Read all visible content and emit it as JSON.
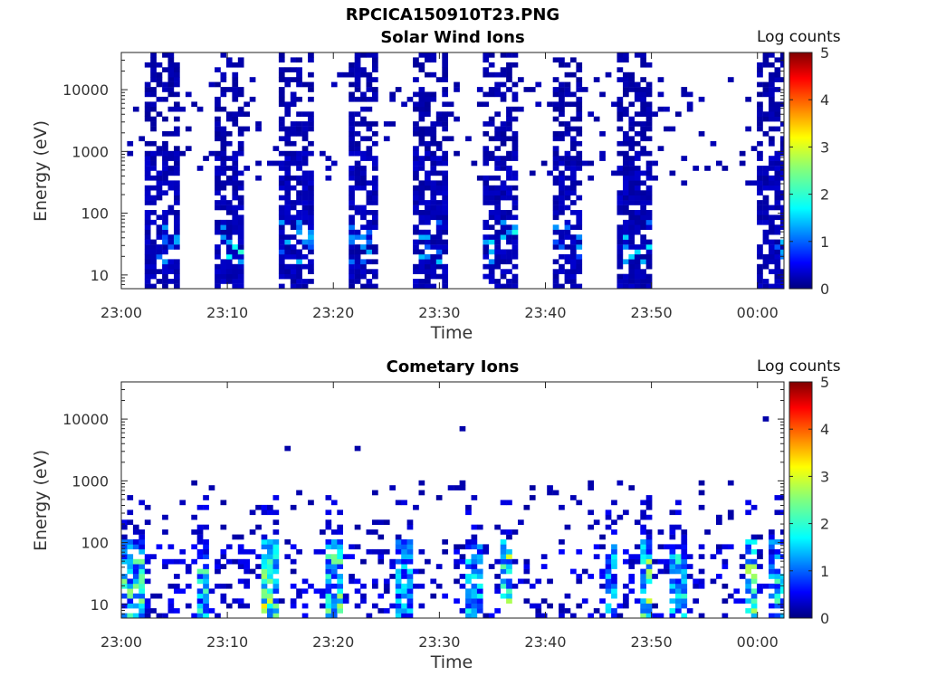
{
  "figure": {
    "title": "RPCICA150910T23.PNG"
  },
  "colorbar": {
    "label": "Log counts",
    "ticks": [
      "0",
      "1",
      "2",
      "3",
      "4",
      "5"
    ],
    "range": [
      0,
      5
    ]
  },
  "chart_data": [
    {
      "type": "heatmap",
      "title": "Solar Wind Ions",
      "xlabel": "Time",
      "ylabel": "Energy (eV)",
      "x_ticks": [
        "23:00",
        "23:10",
        "23:20",
        "23:30",
        "23:40",
        "23:50",
        "00:00"
      ],
      "y_ticks": [
        "10",
        "100",
        "1000",
        "10000"
      ],
      "y_scale": "log",
      "ylim": [
        6,
        40000
      ],
      "xlim_minutes": [
        0,
        62.5
      ],
      "colorbar_label": "Log counts",
      "zlim": [
        0,
        5
      ],
      "bursts": [
        {
          "t_start": 2.0,
          "t_end": 5.0,
          "peak_log_counts": 1.5
        },
        {
          "t_start": 8.3,
          "t_end": 11.4,
          "peak_log_counts": 2.2
        },
        {
          "t_start": 14.5,
          "t_end": 17.8,
          "peak_log_counts": 1.6
        },
        {
          "t_start": 21.0,
          "t_end": 24.2,
          "peak_log_counts": 1.5
        },
        {
          "t_start": 27.5,
          "t_end": 30.6,
          "peak_log_counts": 1.6
        },
        {
          "t_start": 34.0,
          "t_end": 37.2,
          "peak_log_counts": 2.0
        },
        {
          "t_start": 40.3,
          "t_end": 43.4,
          "peak_log_counts": 1.5
        },
        {
          "t_start": 46.6,
          "t_end": 49.6,
          "peak_log_counts": 1.8
        },
        {
          "t_start": 59.5,
          "t_end": 62.5,
          "peak_log_counts": 1.6
        }
      ]
    },
    {
      "type": "heatmap",
      "title": "Cometary Ions",
      "xlabel": "Time",
      "ylabel": "Energy (eV)",
      "x_ticks": [
        "23:00",
        "23:10",
        "23:20",
        "23:30",
        "23:40",
        "23:50",
        "00:00"
      ],
      "y_ticks": [
        "10",
        "100",
        "1000",
        "10000"
      ],
      "y_scale": "log",
      "ylim": [
        6,
        40000
      ],
      "xlim_minutes": [
        0,
        62.5
      ],
      "colorbar_label": "Log counts",
      "zlim": [
        0,
        5
      ],
      "bursts": [
        {
          "t_start": 0.0,
          "t_end": 1.8,
          "peak_log_counts": 2.6
        },
        {
          "t_start": 6.6,
          "t_end": 8.0,
          "peak_log_counts": 2.4
        },
        {
          "t_start": 13.0,
          "t_end": 14.6,
          "peak_log_counts": 3.3
        },
        {
          "t_start": 19.2,
          "t_end": 20.6,
          "peak_log_counts": 2.8
        },
        {
          "t_start": 25.8,
          "t_end": 27.0,
          "peak_log_counts": 2.0
        },
        {
          "t_start": 32.2,
          "t_end": 33.6,
          "peak_log_counts": 2.0
        },
        {
          "t_start": 35.3,
          "t_end": 36.8,
          "peak_log_counts": 3.2
        },
        {
          "t_start": 45.2,
          "t_end": 46.4,
          "peak_log_counts": 2.0
        },
        {
          "t_start": 48.5,
          "t_end": 49.9,
          "peak_log_counts": 3.0
        },
        {
          "t_start": 51.5,
          "t_end": 52.9,
          "peak_log_counts": 2.2
        },
        {
          "t_start": 58.5,
          "t_end": 59.6,
          "peak_log_counts": 2.8
        },
        {
          "t_start": 61.0,
          "t_end": 62.2,
          "peak_log_counts": 2.3
        }
      ]
    }
  ]
}
